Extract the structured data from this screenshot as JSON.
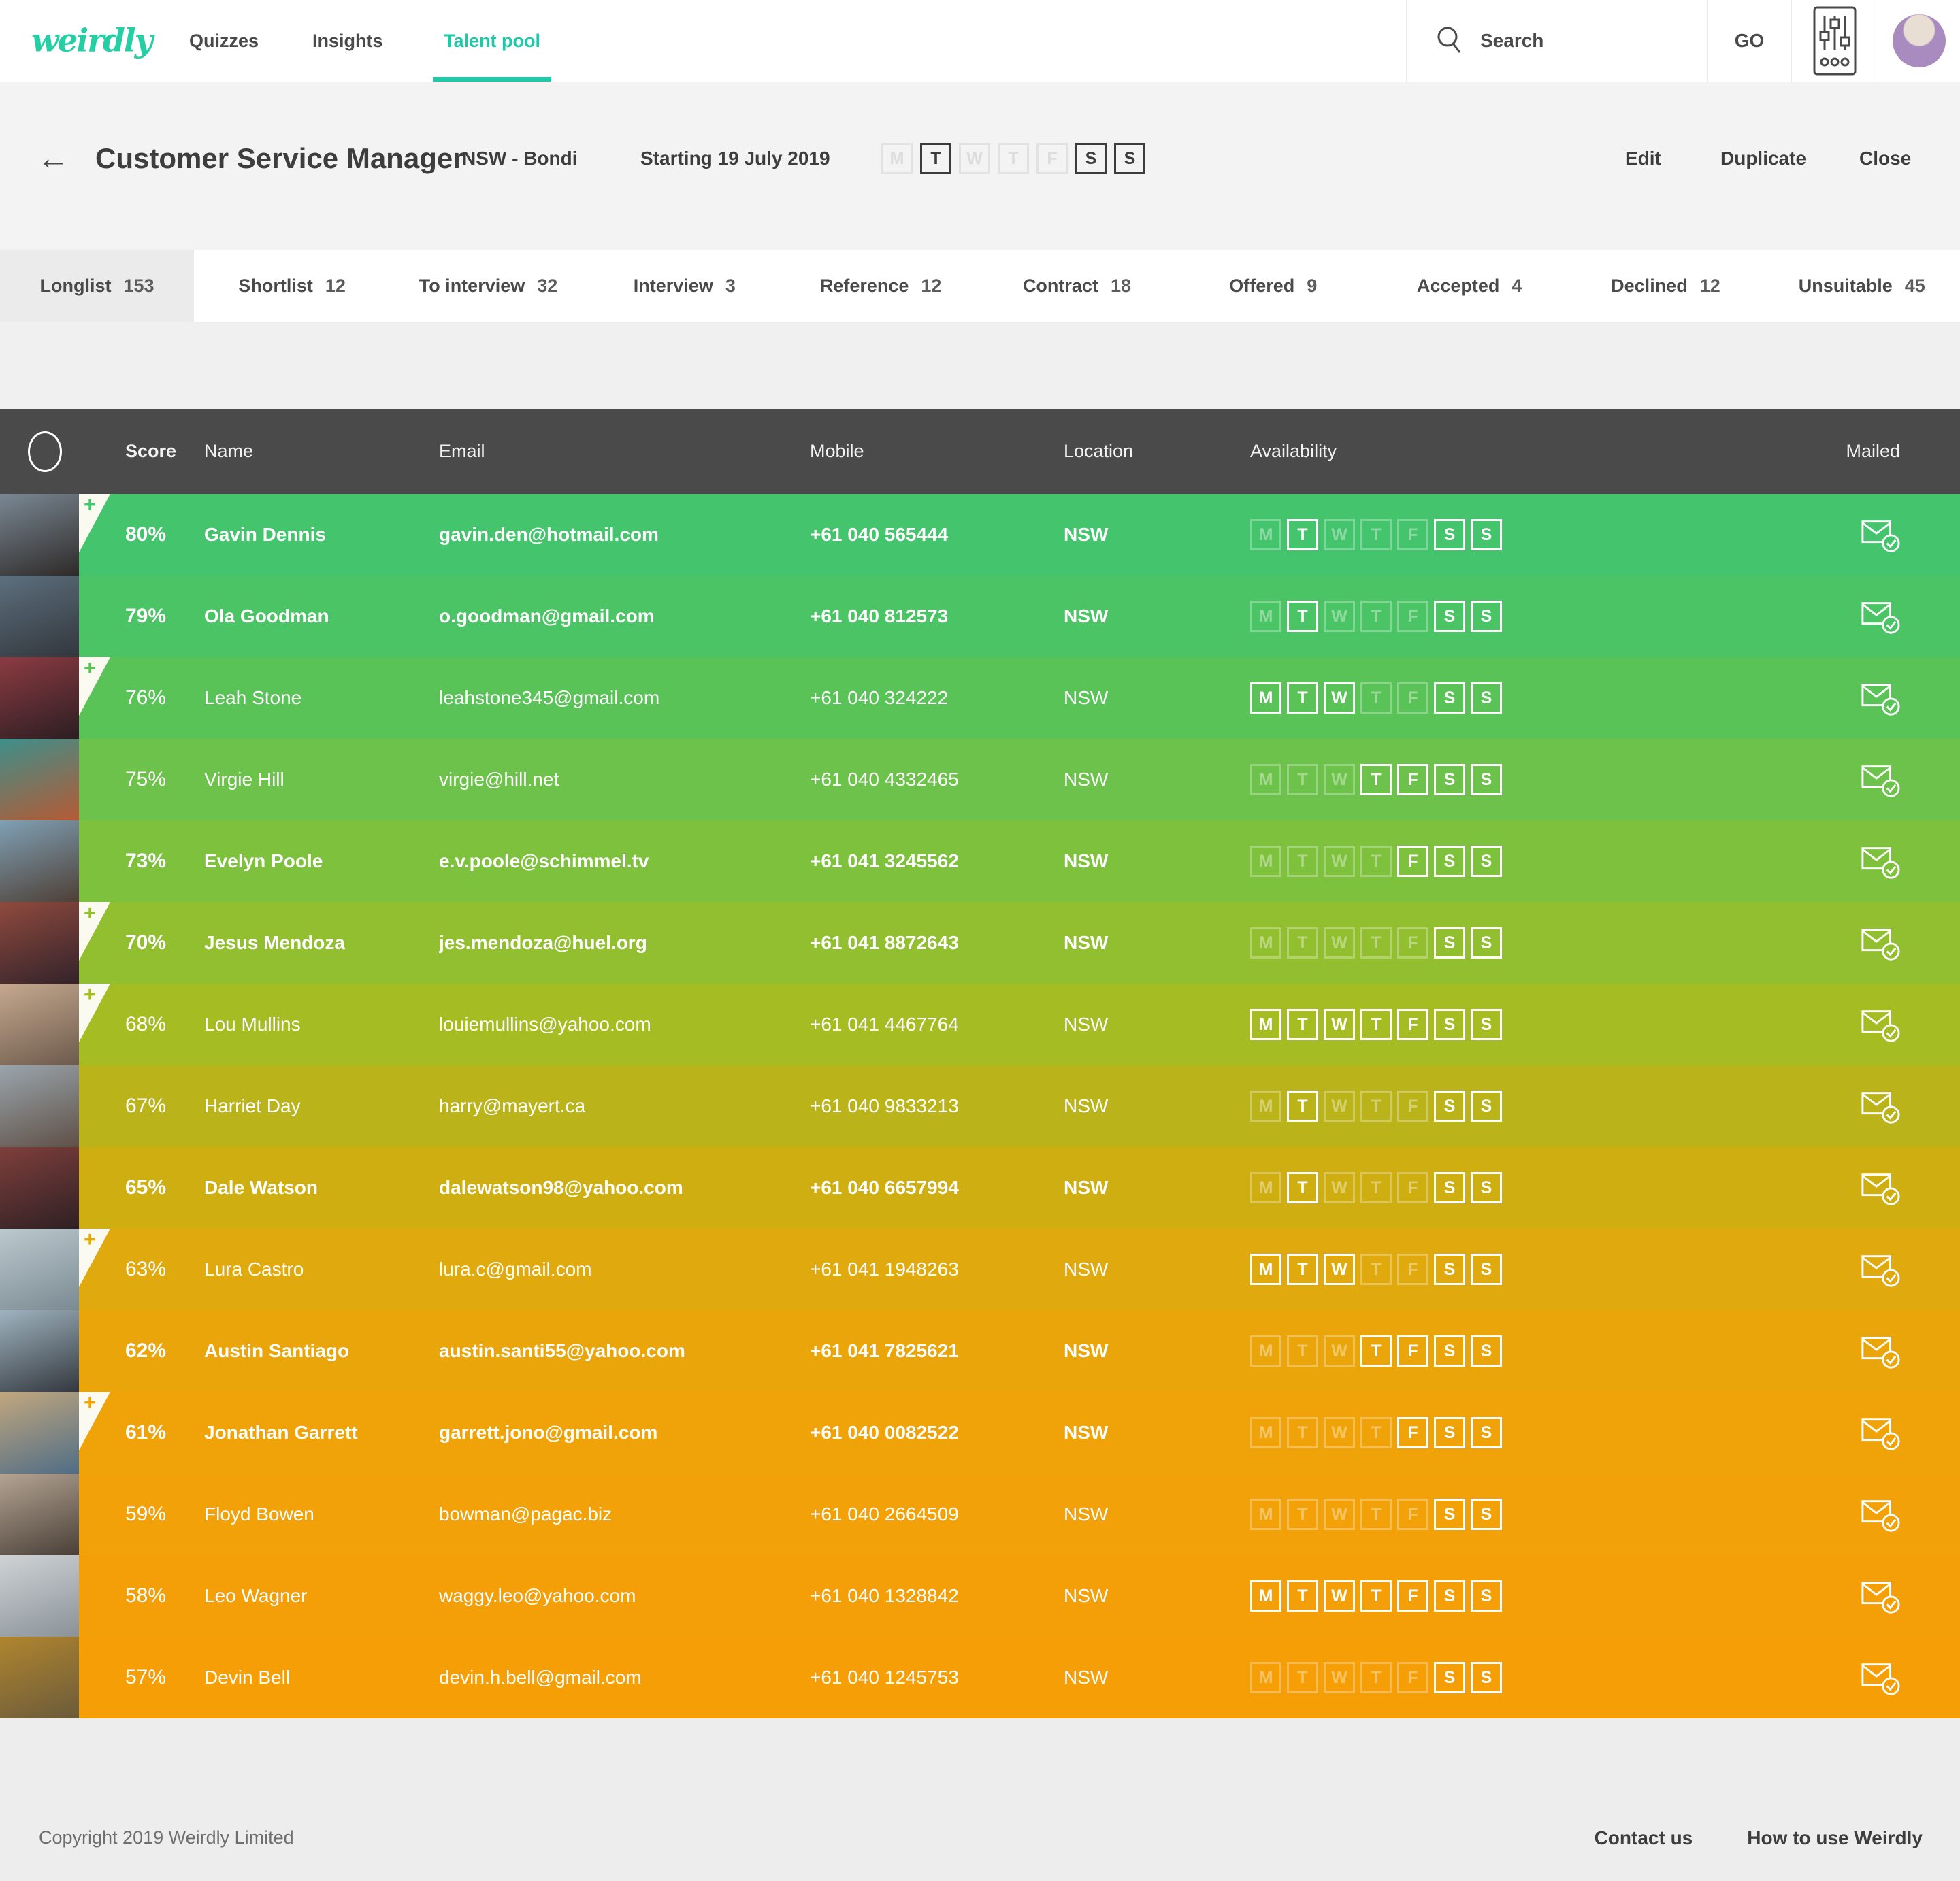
{
  "nav": {
    "logo": "weirdly",
    "links": [
      {
        "label": "Quizzes",
        "active": false
      },
      {
        "label": "Insights",
        "active": false
      },
      {
        "label": "Talent pool",
        "active": true
      }
    ],
    "search_label": "Search",
    "go_label": "GO"
  },
  "header": {
    "back_icon": "←",
    "title": "Customer Service Manager",
    "location": "NSW - Bondi",
    "starting": "Starting 19 July 2019",
    "days": [
      "M",
      "T",
      "W",
      "T",
      "F",
      "S",
      "S"
    ],
    "days_active": [
      1,
      5,
      6
    ],
    "actions": [
      "Edit",
      "Duplicate",
      "Close"
    ]
  },
  "tabs": [
    {
      "label": "Longlist",
      "count": "153",
      "active": true
    },
    {
      "label": "Shortlist",
      "count": "12",
      "active": false
    },
    {
      "label": "To interview",
      "count": "32",
      "active": false
    },
    {
      "label": "Interview",
      "count": "3",
      "active": false
    },
    {
      "label": "Reference",
      "count": "12",
      "active": false
    },
    {
      "label": "Contract",
      "count": "18",
      "active": false
    },
    {
      "label": "Offered",
      "count": "9",
      "active": false
    },
    {
      "label": "Accepted",
      "count": "4",
      "active": false
    },
    {
      "label": "Declined",
      "count": "12",
      "active": false
    },
    {
      "label": "Unsuitable",
      "count": "45",
      "active": false
    }
  ],
  "table": {
    "columns": [
      "Score",
      "Name",
      "Email",
      "Mobile",
      "Location",
      "Availability",
      "Mailed"
    ],
    "days": [
      "M",
      "T",
      "W",
      "T",
      "F",
      "S",
      "S"
    ],
    "rows": [
      {
        "score": "80%",
        "name": "Gavin Dennis",
        "email": "gavin.den@hotmail.com",
        "mobile": "+61 040 565444",
        "location": "NSW",
        "days_active": [
          1,
          5,
          6
        ],
        "bold": true,
        "notch": true,
        "color": "#44c46d",
        "photo": [
          "#7a8894",
          "#2e2a28"
        ]
      },
      {
        "score": "79%",
        "name": "Ola Goodman",
        "email": "o.goodman@gmail.com",
        "mobile": "+61 040 812573",
        "location": "NSW",
        "days_active": [
          1,
          5,
          6
        ],
        "bold": true,
        "notch": false,
        "color": "#4bc465",
        "photo": [
          "#5d6f7e",
          "#32373c"
        ]
      },
      {
        "score": "76%",
        "name": "Leah Stone",
        "email": "leahstone345@gmail.com",
        "mobile": "+61 040 324222",
        "location": "NSW",
        "days_active": [
          0,
          1,
          2,
          5,
          6
        ],
        "bold": false,
        "notch": true,
        "color": "#5ac358",
        "photo": [
          "#8c3b42",
          "#2b1e22"
        ]
      },
      {
        "score": "75%",
        "name": "Virgie Hill",
        "email": "virgie@hill.net",
        "mobile": "+61 040 4332465",
        "location": "NSW",
        "days_active": [
          3,
          4,
          5,
          6
        ],
        "bold": false,
        "notch": false,
        "color": "#6cc24a",
        "photo": [
          "#3e8f8a",
          "#b55a35"
        ]
      },
      {
        "score": "73%",
        "name": "Evelyn Poole",
        "email": "e.v.poole@schimmel.tv",
        "mobile": "+61 041 3245562",
        "location": "NSW",
        "days_active": [
          4,
          5,
          6
        ],
        "bold": true,
        "notch": false,
        "color": "#7dc13d",
        "photo": [
          "#7fa0b5",
          "#4e3f35"
        ]
      },
      {
        "score": "70%",
        "name": "Jesus Mendoza",
        "email": "jes.mendoza@huel.org",
        "mobile": "+61 041 8872643",
        "location": "NSW",
        "days_active": [
          5,
          6
        ],
        "bold": true,
        "notch": true,
        "color": "#92bf2f",
        "photo": [
          "#8f4a3e",
          "#33232a"
        ]
      },
      {
        "score": "68%",
        "name": "Lou Mullins",
        "email": "louiemullins@yahoo.com",
        "mobile": "+61 041 4467764",
        "location": "NSW",
        "days_active": [
          0,
          1,
          2,
          3,
          4,
          5,
          6
        ],
        "bold": false,
        "notch": true,
        "color": "#a5bc23",
        "photo": [
          "#c5a98f",
          "#6d5a4c"
        ]
      },
      {
        "score": "67%",
        "name": "Harriet Day",
        "email": "harry@mayert.ca",
        "mobile": "+61 040 9833213",
        "location": "NSW",
        "days_active": [
          1,
          5,
          6
        ],
        "bold": false,
        "notch": false,
        "color": "#bab41a",
        "photo": [
          "#9aa5ad",
          "#5f5046"
        ]
      },
      {
        "score": "65%",
        "name": "Dale Watson",
        "email": "dalewatson98@yahoo.com",
        "mobile": "+61 040 6657994",
        "location": "NSW",
        "days_active": [
          1,
          5,
          6
        ],
        "bold": true,
        "notch": false,
        "color": "#cfae12",
        "photo": [
          "#7e3f3c",
          "#2f2023"
        ]
      },
      {
        "score": "63%",
        "name": "Lura Castro",
        "email": "lura.c@gmail.com",
        "mobile": "+61 041 1948263",
        "location": "NSW",
        "days_active": [
          0,
          1,
          2,
          5,
          6
        ],
        "bold": false,
        "notch": true,
        "color": "#e0a90e",
        "photo": [
          "#bcc9cf",
          "#7b8a92"
        ]
      },
      {
        "score": "62%",
        "name": "Austin Santiago",
        "email": "austin.santi55@yahoo.com",
        "mobile": "+61 041 7825621",
        "location": "NSW",
        "days_active": [
          3,
          4,
          5,
          6
        ],
        "bold": true,
        "notch": false,
        "color": "#eaa50b",
        "photo": [
          "#9fb3bf",
          "#33383e"
        ]
      },
      {
        "score": "61%",
        "name": "Jonathan Garrett",
        "email": "garrett.jono@gmail.com",
        "mobile": "+61 040 0082522",
        "location": "NSW",
        "days_active": [
          4,
          5,
          6
        ],
        "bold": true,
        "notch": true,
        "color": "#f0a309",
        "photo": [
          "#c2a77e",
          "#4f6d86"
        ]
      },
      {
        "score": "59%",
        "name": "Floyd Bowen",
        "email": "bowman@pagac.biz",
        "mobile": "+61 040 2664509",
        "location": "NSW",
        "days_active": [
          5,
          6
        ],
        "bold": false,
        "notch": false,
        "color": "#f2a108",
        "photo": [
          "#b4a493",
          "#4a4038"
        ]
      },
      {
        "score": "58%",
        "name": "Leo Wagner",
        "email": "waggy.leo@yahoo.com",
        "mobile": "+61 040 1328842",
        "location": "NSW",
        "days_active": [
          0,
          1,
          2,
          3,
          4,
          5,
          6
        ],
        "bold": false,
        "notch": false,
        "color": "#f49f07",
        "photo": [
          "#cfd3d6",
          "#8a9298"
        ]
      },
      {
        "score": "57%",
        "name": "Devin Bell",
        "email": "devin.h.bell@gmail.com",
        "mobile": "+61 040 1245753",
        "location": "NSW",
        "days_active": [
          5,
          6
        ],
        "bold": false,
        "notch": false,
        "color": "#f59e06",
        "photo": [
          "#b0852f",
          "#6b5b3a"
        ]
      }
    ]
  },
  "footer": {
    "copyright": "Copyright 2019 Weirdly Limited",
    "links": [
      "Contact us",
      "How to use Weirdly"
    ]
  },
  "colors": {
    "accent_teal": "#1fc9a7",
    "table_header_bg": "#4a4a4a",
    "notch_cream": "#fbfaf1"
  }
}
